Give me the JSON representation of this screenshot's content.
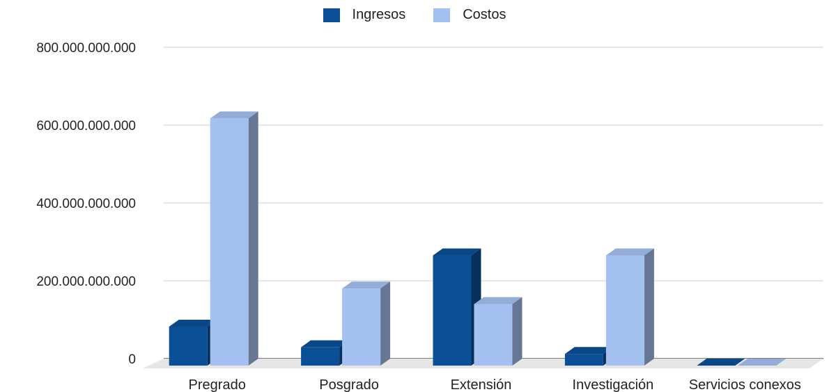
{
  "chart_data": {
    "type": "bar",
    "categories": [
      "Pregrado",
      "Posgrado",
      "Extensión",
      "Investigación",
      "Servicios conexos"
    ],
    "series": [
      {
        "name": "Ingresos",
        "color": "#0b4f96",
        "values": [
          100000000000,
          47000000000,
          283000000000,
          30000000000,
          0
        ]
      },
      {
        "name": "Costos",
        "color": "#a3c0f0",
        "values": [
          635000000000,
          198000000000,
          158000000000,
          283000000000,
          0
        ]
      }
    ],
    "y_ticks": [
      "0",
      "200.000.000.000",
      "400.000.000.000",
      "600.000.000.000",
      "800.000.000.000"
    ],
    "ylim": [
      0,
      800000000000
    ],
    "grid": true,
    "legend": "top-center",
    "style": "3d-bar"
  }
}
